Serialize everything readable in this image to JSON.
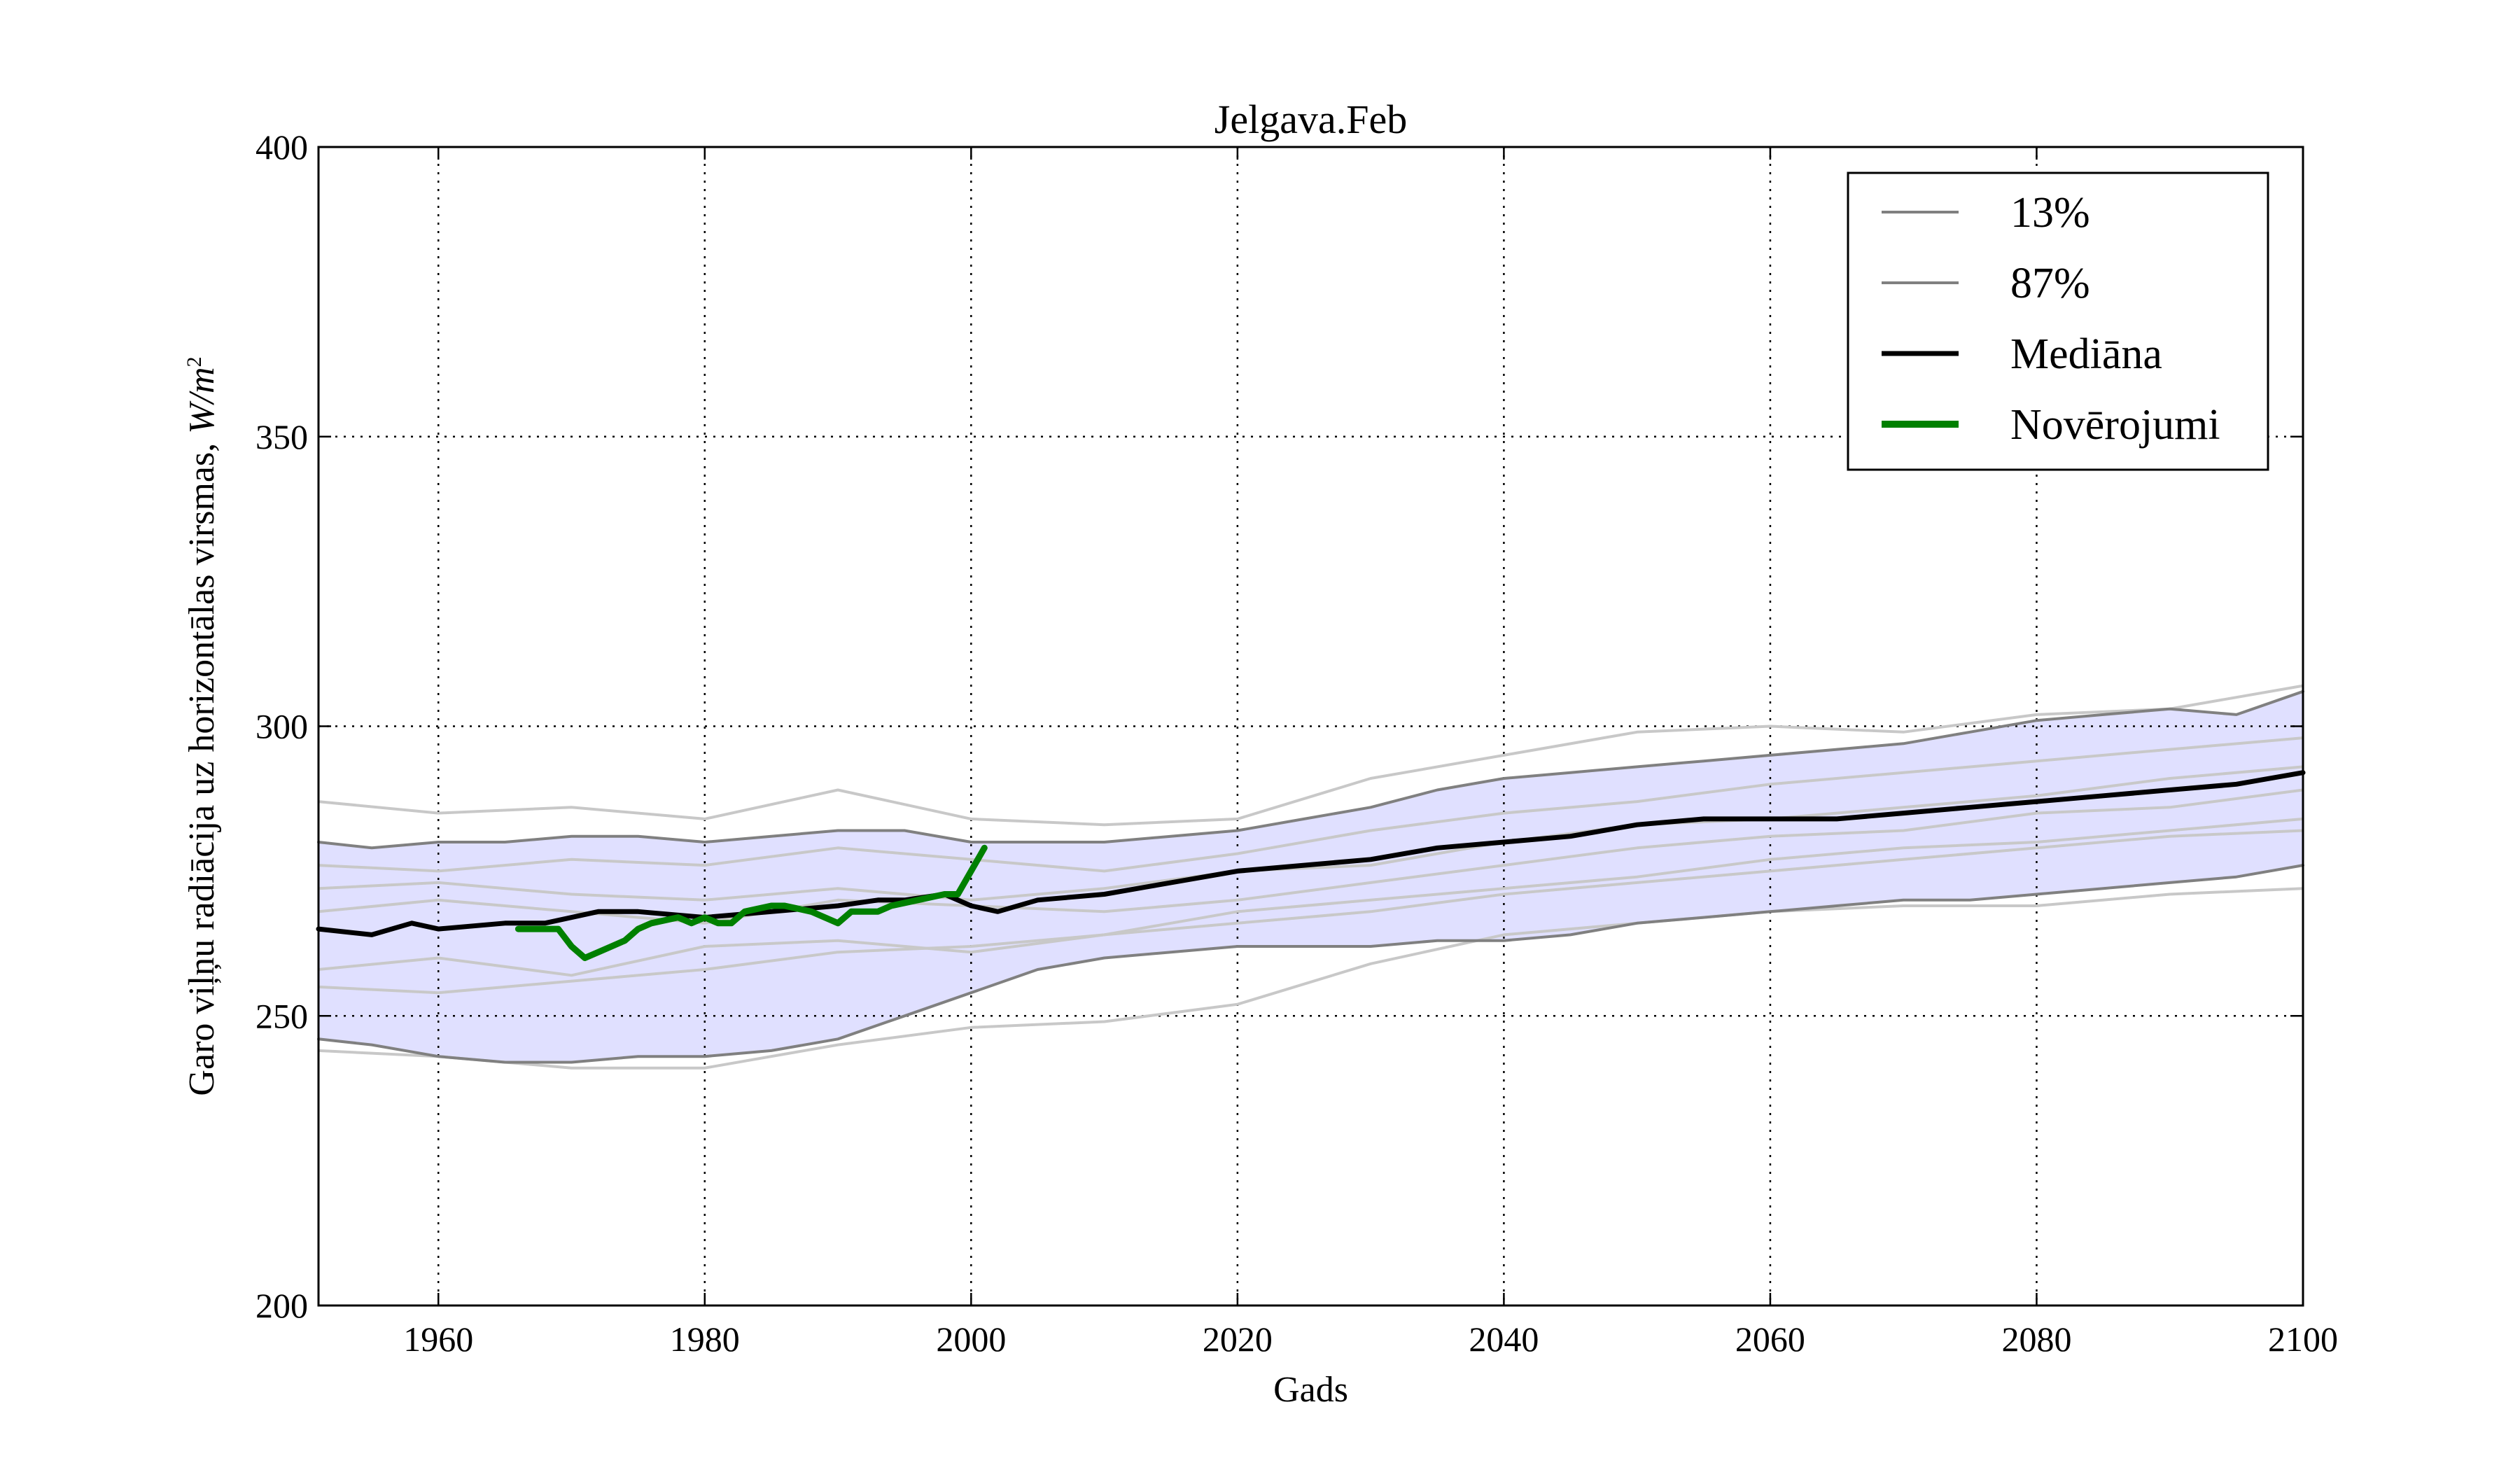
{
  "chart_data": {
    "type": "line",
    "title": "Jelgava.Feb",
    "xlabel": "Gads",
    "ylabel": "Garo viļņu radiācija uz horizontālas virsmas, W/m²",
    "ylabel_text": "Garo viļņu radiācija uz horizontālas virsmas, ",
    "ylabel_unit": "W/m",
    "ylabel_unit_sup": "2",
    "xlim": [
      1951,
      2100
    ],
    "ylim": [
      200,
      400
    ],
    "xticks": [
      1960,
      1980,
      2000,
      2020,
      2040,
      2060,
      2080,
      2100
    ],
    "yticks": [
      200,
      250,
      300,
      350,
      400
    ],
    "grid": true,
    "grid_style": "dotted",
    "legend_position": "top-right",
    "legend": [
      {
        "label": "13%",
        "color": "#808080",
        "style": "thin"
      },
      {
        "label": "87%",
        "color": "#808080",
        "style": "thin"
      },
      {
        "label": "Mediāna",
        "color": "#000000",
        "style": "thick"
      },
      {
        "label": "Novērojumi",
        "color": "#008000",
        "style": "thick"
      }
    ],
    "band": {
      "color": "#e0e0ff",
      "lower_series": "13%",
      "upper_series": "87%"
    },
    "series": [
      {
        "name": "13%",
        "color": "#808080",
        "x": [
          1951,
          1955,
          1960,
          1965,
          1970,
          1975,
          1980,
          1985,
          1990,
          1995,
          2000,
          2005,
          2010,
          2015,
          2020,
          2025,
          2030,
          2035,
          2040,
          2045,
          2050,
          2055,
          2060,
          2065,
          2070,
          2075,
          2080,
          2085,
          2090,
          2095,
          2100
        ],
        "y": [
          246,
          245,
          243,
          242,
          242,
          243,
          243,
          244,
          246,
          250,
          254,
          258,
          260,
          261,
          262,
          262,
          262,
          263,
          263,
          264,
          266,
          267,
          268,
          269,
          270,
          270,
          271,
          272,
          273,
          274,
          276
        ]
      },
      {
        "name": "87%",
        "color": "#808080",
        "x": [
          1951,
          1955,
          1960,
          1965,
          1970,
          1975,
          1980,
          1985,
          1990,
          1995,
          2000,
          2005,
          2010,
          2015,
          2020,
          2025,
          2030,
          2035,
          2040,
          2045,
          2050,
          2055,
          2060,
          2065,
          2070,
          2075,
          2080,
          2085,
          2090,
          2095,
          2100
        ],
        "y": [
          280,
          279,
          280,
          280,
          281,
          281,
          280,
          281,
          282,
          282,
          280,
          280,
          280,
          281,
          282,
          284,
          286,
          289,
          291,
          292,
          293,
          294,
          295,
          296,
          297,
          299,
          301,
          302,
          303,
          302,
          306
        ]
      },
      {
        "name": "Mediāna",
        "color": "#000000",
        "x": [
          1951,
          1955,
          1958,
          1960,
          1965,
          1968,
          1972,
          1975,
          1980,
          1985,
          1990,
          1993,
          1995,
          1998,
          2000,
          2002,
          2005,
          2010,
          2015,
          2020,
          2025,
          2030,
          2035,
          2040,
          2045,
          2050,
          2055,
          2060,
          2065,
          2070,
          2075,
          2080,
          2085,
          2090,
          2095,
          2100
        ],
        "y": [
          265,
          264,
          266,
          265,
          266,
          266,
          268,
          268,
          267,
          268,
          269,
          270,
          270,
          271,
          269,
          268,
          270,
          271,
          273,
          275,
          276,
          277,
          279,
          280,
          281,
          283,
          284,
          284,
          284,
          285,
          286,
          287,
          288,
          289,
          290,
          292
        ]
      },
      {
        "name": "Novērojumi",
        "color": "#008000",
        "x": [
          1966,
          1968,
          1969,
          1970,
          1971,
          1972,
          1973,
          1974,
          1975,
          1976,
          1978,
          1979,
          1980,
          1981,
          1982,
          1983,
          1985,
          1986,
          1988,
          1990,
          1991,
          1992,
          1993,
          1994,
          1996,
          1998,
          1999,
          2000,
          2001
        ],
        "y": [
          265,
          265,
          265,
          262,
          260,
          261,
          262,
          263,
          265,
          266,
          267,
          266,
          267,
          266,
          266,
          268,
          269,
          269,
          268,
          266,
          268,
          268,
          268,
          269,
          270,
          271,
          271,
          275,
          279
        ]
      }
    ],
    "ensemble_members": [
      {
        "x": [
          1951,
          1960,
          1970,
          1980,
          1990,
          2000,
          2010,
          2020,
          2030,
          2040,
          2050,
          2060,
          2070,
          2080,
          2090,
          2100
        ],
        "y": [
          287,
          285,
          286,
          284,
          289,
          284,
          283,
          284,
          291,
          295,
          299,
          300,
          299,
          302,
          303,
          307
        ]
      },
      {
        "x": [
          1951,
          1960,
          1970,
          1980,
          1990,
          2000,
          2010,
          2020,
          2030,
          2040,
          2050,
          2060,
          2070,
          2080,
          2090,
          2100
        ],
        "y": [
          244,
          243,
          241,
          241,
          245,
          248,
          249,
          252,
          259,
          264,
          266,
          268,
          269,
          269,
          271,
          272
        ]
      },
      {
        "x": [
          1951,
          1960,
          1970,
          1980,
          1990,
          2000,
          2010,
          2020,
          2030,
          2040,
          2050,
          2060,
          2070,
          2080,
          2090,
          2100
        ],
        "y": [
          272,
          273,
          271,
          270,
          272,
          270,
          272,
          275,
          276,
          280,
          283,
          284,
          286,
          288,
          291,
          293
        ]
      },
      {
        "x": [
          1951,
          1960,
          1970,
          1980,
          1990,
          2000,
          2010,
          2020,
          2030,
          2040,
          2050,
          2060,
          2070,
          2080,
          2090,
          2100
        ],
        "y": [
          258,
          260,
          257,
          262,
          263,
          261,
          264,
          266,
          268,
          271,
          273,
          275,
          277,
          279,
          281,
          282
        ]
      },
      {
        "x": [
          1951,
          1960,
          1970,
          1980,
          1990,
          2000,
          2010,
          2020,
          2030,
          2040,
          2050,
          2060,
          2070,
          2080,
          2090,
          2100
        ],
        "y": [
          268,
          270,
          268,
          266,
          270,
          269,
          268,
          270,
          273,
          276,
          279,
          281,
          282,
          285,
          286,
          289
        ]
      },
      {
        "x": [
          1951,
          1960,
          1970,
          1980,
          1990,
          2000,
          2010,
          2020,
          2030,
          2040,
          2050,
          2060,
          2070,
          2080,
          2090,
          2100
        ],
        "y": [
          276,
          275,
          277,
          276,
          279,
          277,
          275,
          278,
          282,
          285,
          287,
          290,
          292,
          294,
          296,
          298
        ]
      },
      {
        "x": [
          1951,
          1960,
          1970,
          1980,
          1990,
          2000,
          2010,
          2020,
          2030,
          2040,
          2050,
          2060,
          2070,
          2080,
          2090,
          2100
        ],
        "y": [
          255,
          254,
          256,
          258,
          261,
          262,
          264,
          268,
          270,
          272,
          274,
          277,
          279,
          280,
          282,
          284
        ]
      }
    ]
  }
}
